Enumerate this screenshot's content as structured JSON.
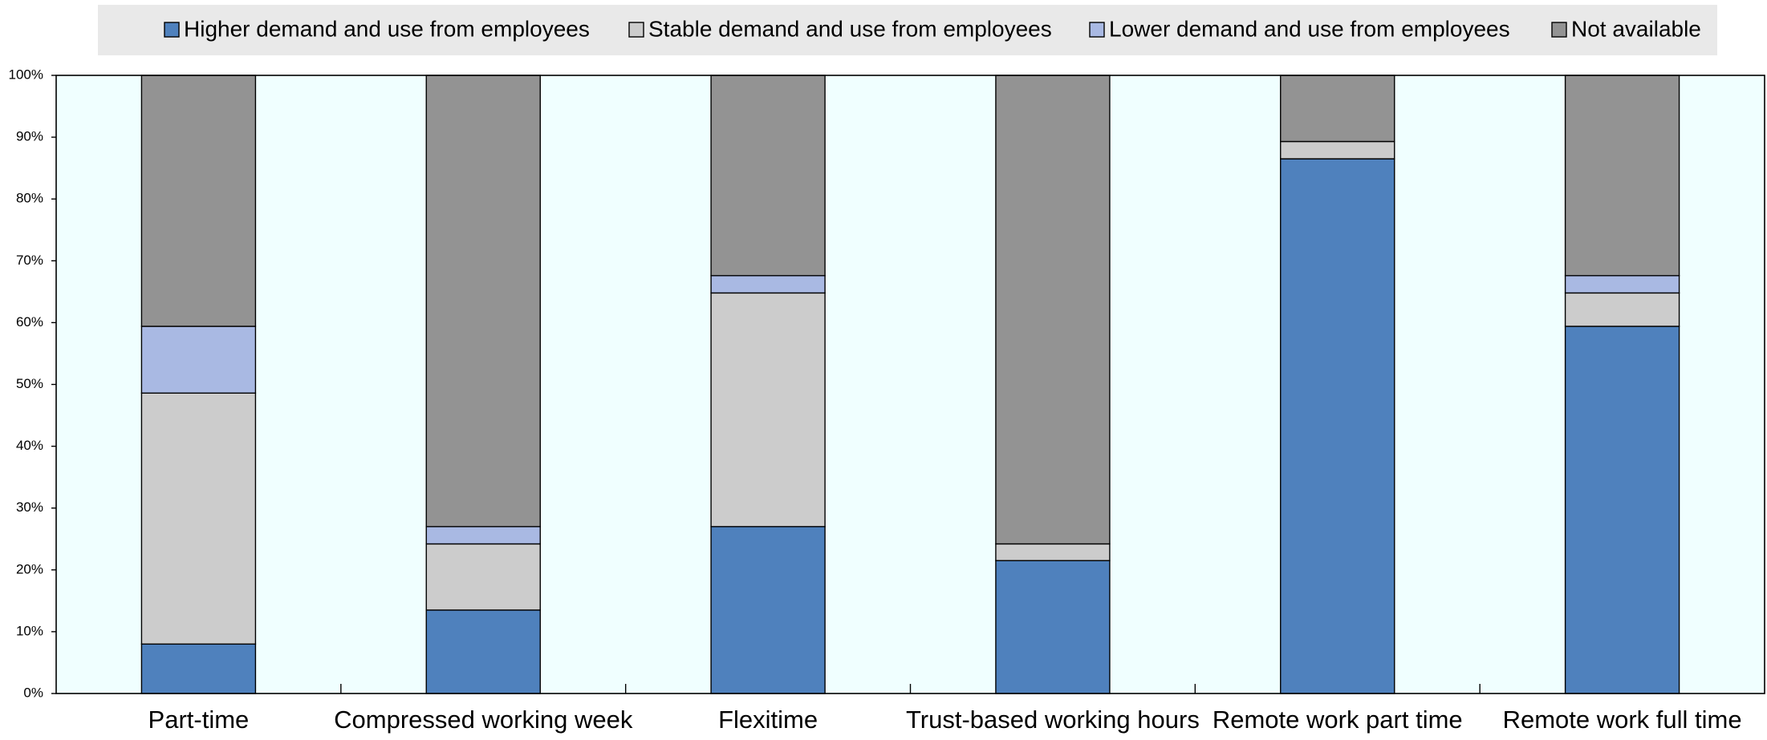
{
  "chart_data": {
    "type": "stacked_bar",
    "categories": [
      "Part-time",
      "Compressed working week",
      "Flexitime",
      "Trust-based working hours",
      "Remote work part time",
      "Remote work full time"
    ],
    "series": [
      {
        "name": "Higher demand and use from employees",
        "color": "#4f81bd",
        "values": [
          8.0,
          13.5,
          27.0,
          21.5,
          86.5,
          59.4
        ]
      },
      {
        "name": "Stable demand and use from employees",
        "color": "#cccccc",
        "values": [
          40.6,
          10.7,
          37.8,
          2.7,
          2.8,
          5.4
        ]
      },
      {
        "name": "Lower demand and use from employees",
        "color": "#a9b9e3",
        "values": [
          10.8,
          2.8,
          2.8,
          0,
          0,
          2.8
        ]
      },
      {
        "name": "Not available",
        "color": "#939393",
        "values": [
          40.6,
          73.0,
          32.4,
          75.8,
          10.7,
          32.4
        ]
      }
    ],
    "ylim": [
      0,
      100
    ],
    "yticks": [
      {
        "value": 0,
        "label": "0%"
      },
      {
        "value": 10,
        "label": "10%"
      },
      {
        "value": 20,
        "label": "20%"
      },
      {
        "value": 30,
        "label": "30%"
      },
      {
        "value": 40,
        "label": "40%"
      },
      {
        "value": 50,
        "label": "50%"
      },
      {
        "value": 60,
        "label": "60%"
      },
      {
        "value": 70,
        "label": "70%"
      },
      {
        "value": 80,
        "label": "80%"
      },
      {
        "value": 90,
        "label": "90%"
      },
      {
        "value": 100,
        "label": "100%"
      }
    ],
    "legend": "top"
  }
}
